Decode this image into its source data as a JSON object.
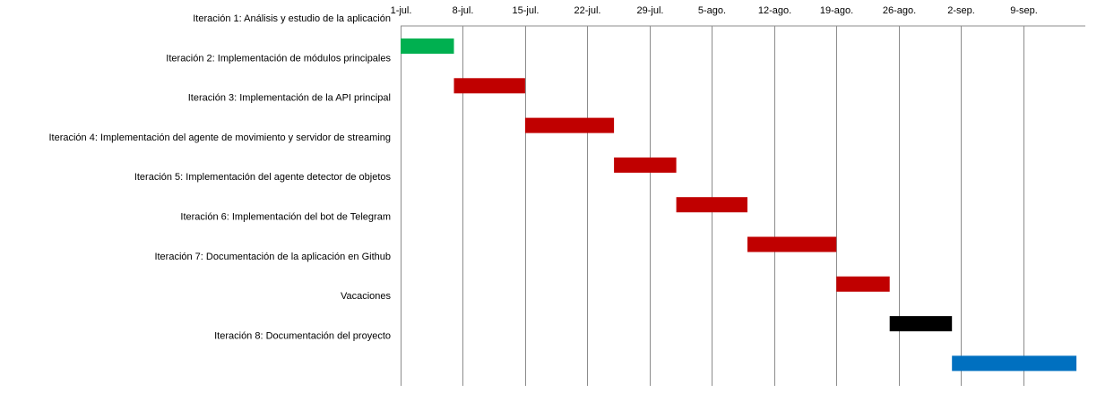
{
  "chart_data": {
    "type": "gantt",
    "x_axis": {
      "position": "top",
      "unit": "day",
      "ticks": [
        "1-jul.",
        "8-jul.",
        "15-jul.",
        "22-jul.",
        "29-jul.",
        "5-ago.",
        "12-ago.",
        "19-ago.",
        "26-ago.",
        "2-sep.",
        "9-sep."
      ],
      "range": [
        "1-jul.",
        "16-sep."
      ],
      "grid": true
    },
    "tasks": [
      {
        "label": "Iteración 1:  Análisis y estudio de la aplicación",
        "start": "1-jul.",
        "end": "7-jul.",
        "color": "#00B050"
      },
      {
        "label": "Iteración 2: Implementación de módulos principales",
        "start": "7-jul.",
        "end": "15-jul.",
        "color": "#C00000"
      },
      {
        "label": "Iteración 3: Implementación de la API principal",
        "start": "15-jul.",
        "end": "25-jul.",
        "color": "#C00000"
      },
      {
        "label": "Iteración 4: Implementación del agente de movimiento y servidor de streaming",
        "start": "25-jul.",
        "end": "1-ago.",
        "color": "#C00000"
      },
      {
        "label": "Iteración 5: Implementación del agente detector de objetos",
        "start": "1-ago.",
        "end": "9-ago.",
        "color": "#C00000"
      },
      {
        "label": "Iteración 6: Implementación del bot de Telegram",
        "start": "9-ago.",
        "end": "19-ago.",
        "color": "#C00000"
      },
      {
        "label": "Iteración 7: Documentación de la aplicación en Github",
        "start": "19-ago.",
        "end": "25-ago.",
        "color": "#C00000"
      },
      {
        "label": "Vacaciones",
        "start": "25-ago.",
        "end": "1-sep.",
        "color": "#000000"
      },
      {
        "label": "Iteración 8: Documentación del proyecto",
        "start": "1-sep.",
        "end": "15-sep.",
        "color": "#0070C0"
      }
    ]
  }
}
